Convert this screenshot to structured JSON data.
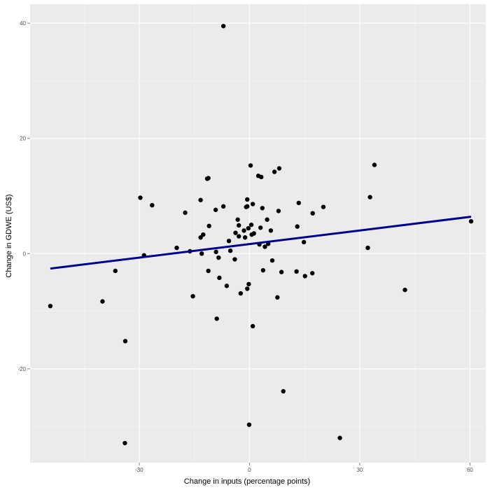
{
  "chart_data": {
    "type": "scatter",
    "title": "",
    "xlabel": "Change in inputs (percentage points)",
    "ylabel": "Change in GDWE (US$)",
    "xlim": [
      -59.7,
      64.3
    ],
    "ylim": [
      -36.3,
      43.3
    ],
    "x_ticks": [
      -30,
      0,
      30,
      60
    ],
    "y_ticks": [
      -20,
      0,
      20,
      40
    ],
    "x_tick_labels": [
      "-30",
      "0",
      "30",
      "60"
    ],
    "y_tick_labels": [
      "-20",
      "0",
      "20",
      "40"
    ],
    "grid": true,
    "point_color": "#000000",
    "line_color": "#00008b",
    "panel_color": "#ebebeb",
    "fit_line": {
      "x": [
        -54.2,
        60.3
      ],
      "y": [
        -2.6,
        6.4
      ]
    },
    "points": [
      [
        -54.2,
        -9.1
      ],
      [
        -7.1,
        39.5
      ],
      [
        -40.0,
        -8.3
      ],
      [
        -36.5,
        -3.0
      ],
      [
        -33.8,
        -15.2
      ],
      [
        -33.9,
        -32.9
      ],
      [
        -29.7,
        9.7
      ],
      [
        -28.7,
        -0.3
      ],
      [
        -26.5,
        8.4
      ],
      [
        -19.8,
        1.0
      ],
      [
        -17.5,
        7.1
      ],
      [
        -16.2,
        0.4
      ],
      [
        -15.4,
        -7.4
      ],
      [
        -13.3,
        9.3
      ],
      [
        -13.3,
        2.8
      ],
      [
        -13.0,
        0.0
      ],
      [
        -12.6,
        3.3
      ],
      [
        -11.5,
        13.0
      ],
      [
        -11.2,
        13.1
      ],
      [
        -11.2,
        -3.0
      ],
      [
        -11.0,
        4.8
      ],
      [
        -9.1,
        0.3
      ],
      [
        -9.2,
        7.6
      ],
      [
        -8.9,
        -11.3
      ],
      [
        -8.4,
        -0.7
      ],
      [
        -8.2,
        -4.2
      ],
      [
        -7.1,
        8.2
      ],
      [
        -6.2,
        -5.6
      ],
      [
        -5.6,
        2.2
      ],
      [
        -5.2,
        0.5
      ],
      [
        -4.0,
        -1.0
      ],
      [
        -3.8,
        3.6
      ],
      [
        -3.2,
        5.9
      ],
      [
        -2.9,
        3.0
      ],
      [
        -2.9,
        4.9
      ],
      [
        -2.4,
        -6.9
      ],
      [
        -1.5,
        4.0
      ],
      [
        -1.2,
        2.8
      ],
      [
        -0.9,
        8.1
      ],
      [
        -0.6,
        9.4
      ],
      [
        -0.6,
        8.2
      ],
      [
        -0.6,
        -6.1
      ],
      [
        -0.3,
        4.4
      ],
      [
        -0.2,
        -5.3
      ],
      [
        -0.1,
        -29.7
      ],
      [
        0.3,
        15.3
      ],
      [
        0.5,
        5.0
      ],
      [
        0.6,
        3.3
      ],
      [
        0.9,
        8.6
      ],
      [
        0.9,
        -12.6
      ],
      [
        1.2,
        3.5
      ],
      [
        2.4,
        13.5
      ],
      [
        2.7,
        1.6
      ],
      [
        3.0,
        4.5
      ],
      [
        3.2,
        13.3
      ],
      [
        3.5,
        7.9
      ],
      [
        3.7,
        -2.9
      ],
      [
        4.2,
        1.2
      ],
      [
        4.8,
        5.9
      ],
      [
        5.1,
        1.7
      ],
      [
        5.8,
        4.0
      ],
      [
        6.2,
        -1.2
      ],
      [
        6.8,
        14.2
      ],
      [
        7.6,
        -7.6
      ],
      [
        7.9,
        7.4
      ],
      [
        8.1,
        14.8
      ],
      [
        8.7,
        -3.2
      ],
      [
        9.2,
        -23.9
      ],
      [
        12.8,
        -3.1
      ],
      [
        13.0,
        4.7
      ],
      [
        13.4,
        8.8
      ],
      [
        14.8,
        2.0
      ],
      [
        15.1,
        -3.9
      ],
      [
        17.1,
        -3.4
      ],
      [
        17.2,
        7.0
      ],
      [
        20.1,
        8.1
      ],
      [
        24.6,
        -32.0
      ],
      [
        32.2,
        1.0
      ],
      [
        32.8,
        9.8
      ],
      [
        34.0,
        15.4
      ],
      [
        42.3,
        -6.3
      ],
      [
        60.3,
        5.6
      ]
    ]
  }
}
